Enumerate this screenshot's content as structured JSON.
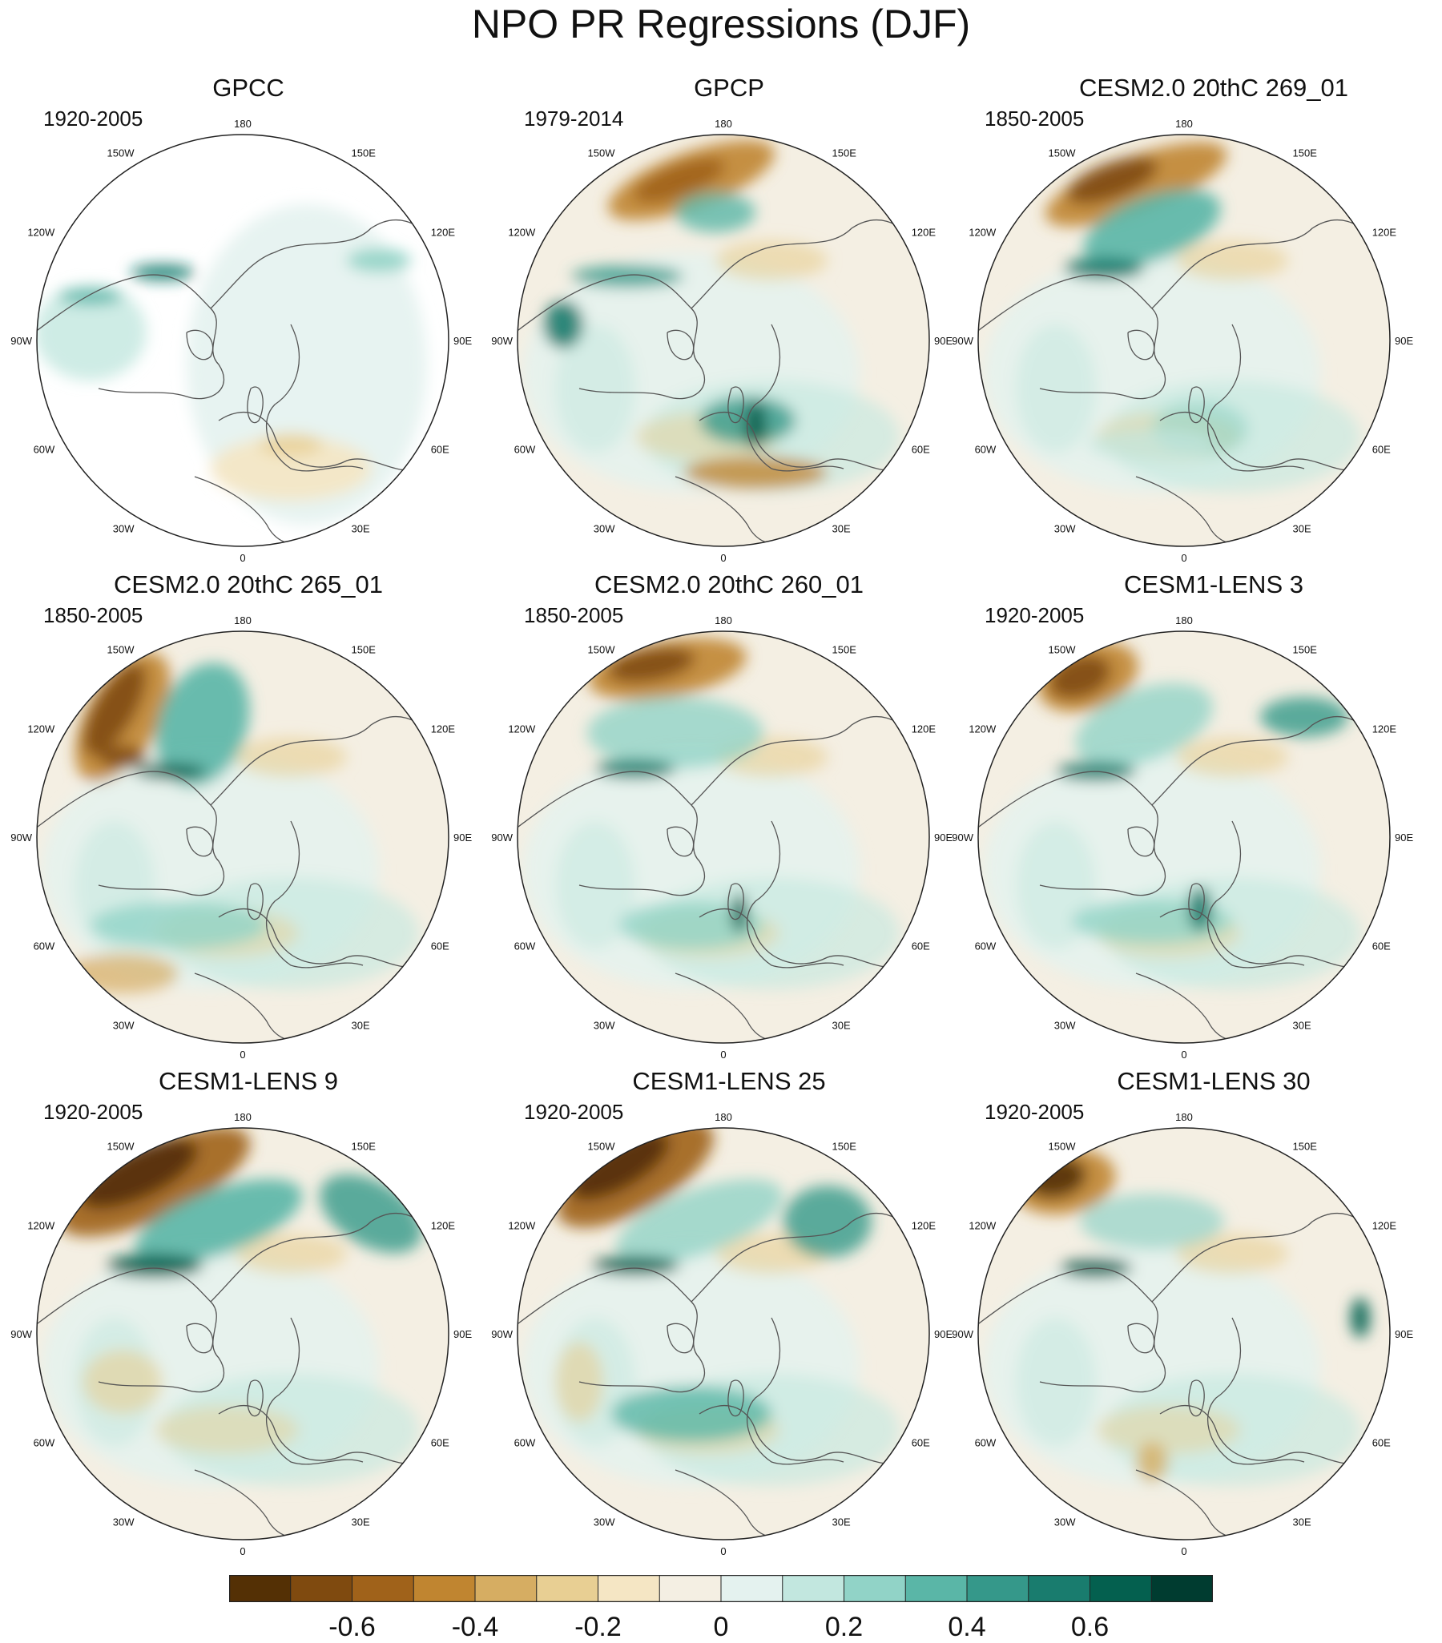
{
  "title": "NPO PR Regressions (DJF)",
  "lon_labels": [
    "180",
    "150E",
    "120E",
    "90E",
    "60E",
    "30E",
    "0",
    "30W",
    "60W",
    "90W",
    "120W",
    "150W"
  ],
  "panels": [
    {
      "name": "GPCC",
      "period": "1920-2005",
      "masked": true
    },
    {
      "name": "GPCP",
      "period": "1979-2014",
      "masked": false
    },
    {
      "name": "CESM2.0 20thC 269_01",
      "period": "1850-2005",
      "masked": false
    },
    {
      "name": "CESM2.0 20thC 265_01",
      "period": "1850-2005",
      "masked": false
    },
    {
      "name": "CESM2.0 20thC 260_01",
      "period": "1850-2005",
      "masked": false
    },
    {
      "name": "CESM1-LENS 3",
      "period": "1920-2005",
      "masked": false
    },
    {
      "name": "CESM1-LENS 9",
      "period": "1920-2005",
      "masked": false
    },
    {
      "name": "CESM1-LENS 25",
      "period": "1920-2005",
      "masked": false
    },
    {
      "name": "CESM1-LENS 30",
      "period": "1920-2005",
      "masked": false
    }
  ],
  "colorbar": {
    "colors": [
      "#543005",
      "#7f4a0f",
      "#a0621a",
      "#c08530",
      "#d6ad62",
      "#e8cf93",
      "#f5e6c4",
      "#f4efe3",
      "#e4f2ef",
      "#c2e7df",
      "#91d3c7",
      "#5ab6a7",
      "#35988a",
      "#197c6e",
      "#04604f",
      "#003c30"
    ],
    "labels": [
      "-0.6",
      "-0.4",
      "-0.2",
      "0",
      "0.2",
      "0.4",
      "0.6"
    ],
    "label_boundary_index": [
      2,
      4,
      6,
      8,
      10,
      12,
      14
    ]
  }
}
